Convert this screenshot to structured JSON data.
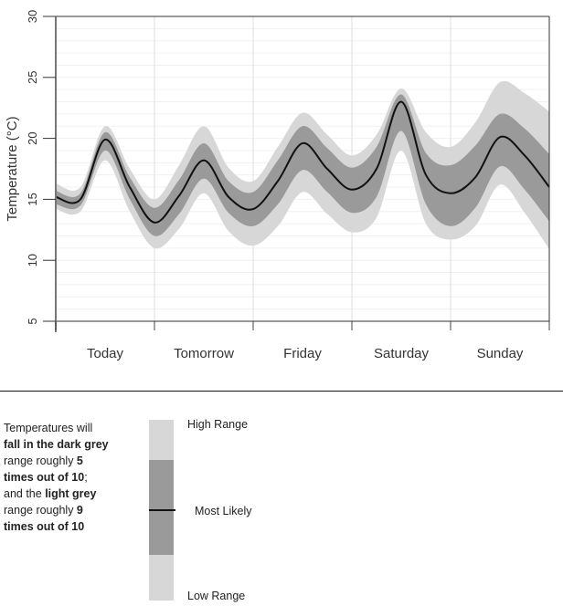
{
  "chart_data": {
    "type": "area",
    "title": "",
    "xlabel": "",
    "ylabel": "Temperature (°C)",
    "ylim": [
      5,
      30
    ],
    "yticks": [
      5,
      10,
      15,
      20,
      25,
      30
    ],
    "grid": true,
    "x_categories": [
      "Today",
      "Tomorrow",
      "Friday",
      "Saturday",
      "Sunday"
    ],
    "x_hours": [
      0,
      6,
      12,
      18,
      24,
      30,
      36,
      42,
      48,
      54,
      60,
      66,
      72,
      78,
      84,
      90,
      96,
      102,
      108,
      114,
      120
    ],
    "series": [
      {
        "name": "Most Likely",
        "values": [
          15.2,
          15.0,
          19.9,
          16.0,
          13.1,
          15.3,
          18.2,
          15.2,
          14.2,
          16.5,
          19.6,
          17.5,
          15.8,
          17.5,
          23.0,
          17.0,
          15.5,
          16.8,
          20.1,
          18.6,
          16.0
        ]
      },
      {
        "name": "Dark grey low (5 in 10)",
        "values": [
          14.6,
          14.5,
          19.0,
          15.0,
          12.0,
          13.8,
          16.7,
          13.9,
          12.8,
          14.6,
          17.4,
          15.6,
          13.9,
          15.2,
          20.6,
          14.6,
          12.8,
          14.3,
          17.7,
          15.8,
          13.2
        ]
      },
      {
        "name": "Dark grey high (5 in 10)",
        "values": [
          15.7,
          15.5,
          20.5,
          16.8,
          14.3,
          16.6,
          19.6,
          16.5,
          15.6,
          18.2,
          21.0,
          19.2,
          17.6,
          19.3,
          23.6,
          18.8,
          17.8,
          19.4,
          22.0,
          20.8,
          18.7
        ]
      },
      {
        "name": "Light grey low (9 in 10)",
        "values": [
          14.2,
          14.0,
          18.2,
          14.0,
          11.0,
          12.6,
          15.5,
          12.4,
          11.2,
          12.8,
          15.6,
          13.8,
          12.3,
          13.5,
          19.0,
          13.0,
          11.7,
          12.8,
          16.2,
          13.9,
          10.9
        ]
      },
      {
        "name": "Light grey high (9 in 10)",
        "values": [
          16.3,
          16.0,
          21.0,
          17.5,
          15.0,
          17.8,
          21.0,
          17.6,
          16.5,
          19.3,
          22.1,
          20.3,
          18.6,
          20.3,
          24.1,
          20.5,
          19.3,
          21.3,
          24.6,
          23.7,
          22.2
        ]
      }
    ],
    "colors": {
      "light_band": "#d7d7d7",
      "dark_band": "#9a9a9a",
      "line": "#111111",
      "axis": "#555555"
    },
    "legend": {
      "description_parts": [
        {
          "text": "Temperatures will",
          "bold": false
        },
        {
          "text": "fall in the dark grey",
          "bold": true
        },
        {
          "text": "range roughly ",
          "bold": false
        },
        {
          "text": "5",
          "bold": true
        },
        {
          "text": "times out of 10",
          "bold": true
        },
        {
          "text": ";",
          "bold": false
        },
        {
          "text": "and the ",
          "bold": false
        },
        {
          "text": "light grey",
          "bold": true
        },
        {
          "text": "range roughly ",
          "bold": false
        },
        {
          "text": "9",
          "bold": true
        },
        {
          "text": "times out of 10",
          "bold": true
        }
      ],
      "labels": {
        "high": "High Range",
        "middle": "Most Likely",
        "low": "Low Range"
      }
    }
  },
  "legend_text": {
    "line1": "Temperatures will",
    "line2_prefix": "fall in the ",
    "line2_bold": "dark grey",
    "line3_prefix": "range roughly ",
    "line3_bold": "5",
    "line4_bold": "times out of 10",
    "line4_suffix": ";",
    "line5_prefix": "and the ",
    "line5_bold": "light grey",
    "line6_prefix": "range roughly ",
    "line6_bold": "9",
    "line7_bold": "times out of 10"
  }
}
